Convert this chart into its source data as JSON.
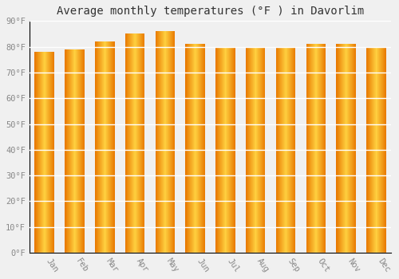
{
  "title": "Average monthly temperatures (°F ) in Davorlim",
  "months": [
    "Jan",
    "Feb",
    "Mar",
    "Apr",
    "May",
    "Jun",
    "Jul",
    "Aug",
    "Sep",
    "Oct",
    "Nov",
    "Dec"
  ],
  "values": [
    78,
    79,
    82,
    85,
    86,
    81,
    80,
    80,
    80,
    81,
    81,
    80
  ],
  "ylim": [
    0,
    90
  ],
  "yticks": [
    0,
    10,
    20,
    30,
    40,
    50,
    60,
    70,
    80,
    90
  ],
  "ytick_labels": [
    "0°F",
    "10°F",
    "20°F",
    "30°F",
    "40°F",
    "50°F",
    "60°F",
    "70°F",
    "80°F",
    "90°F"
  ],
  "background_color": "#F0F0F0",
  "grid_color": "#FFFFFF",
  "bar_edge_color": "#E87800",
  "bar_center_color": "#FFD040",
  "bar_width": 0.65,
  "title_fontsize": 10,
  "tick_fontsize": 7.5,
  "label_color": "#888888"
}
